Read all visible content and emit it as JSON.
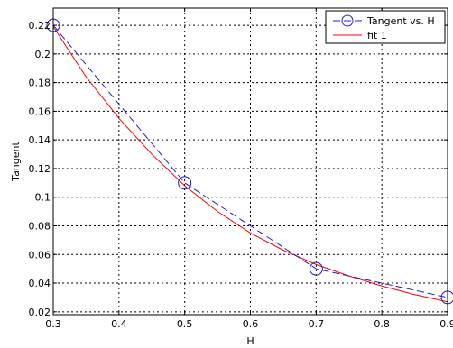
{
  "chart_data": {
    "type": "line",
    "title": "",
    "xlabel": "H",
    "ylabel": "Tangent",
    "xlim": [
      0.3,
      0.9
    ],
    "ylim": [
      0.018,
      0.232
    ],
    "xticks": [
      0.3,
      0.4,
      0.5,
      0.6,
      0.7,
      0.8,
      0.9
    ],
    "yticks": [
      0.02,
      0.04,
      0.06,
      0.08,
      0.1,
      0.12,
      0.14,
      0.16,
      0.18,
      0.2,
      0.22
    ],
    "xtick_labels": [
      "0.3",
      "0.4",
      "0.5",
      "0.6",
      "0.7",
      "0.8",
      "0.9"
    ],
    "ytick_labels": [
      "0.02",
      "0.04",
      "0.06",
      "0.08",
      "0.1",
      "0.12",
      "0.14",
      "0.16",
      "0.18",
      "0.2",
      "0.22"
    ],
    "grid": true,
    "legend_position": "top-right",
    "series": [
      {
        "name": "Tangent vs. H",
        "style": "dashed-circle-markers",
        "color": "#1f1fd0",
        "x": [
          0.3,
          0.5,
          0.7,
          0.9
        ],
        "y": [
          0.22,
          0.11,
          0.05,
          0.03
        ]
      },
      {
        "name": "fit 1",
        "style": "solid",
        "color": "#ff0000",
        "x": [
          0.3,
          0.35,
          0.4,
          0.45,
          0.5,
          0.55,
          0.6,
          0.65,
          0.7,
          0.75,
          0.8,
          0.85,
          0.9
        ],
        "y": [
          0.219,
          0.184,
          0.155,
          0.13,
          0.108,
          0.09,
          0.075,
          0.063,
          0.053,
          0.045,
          0.038,
          0.032,
          0.027
        ]
      }
    ]
  }
}
